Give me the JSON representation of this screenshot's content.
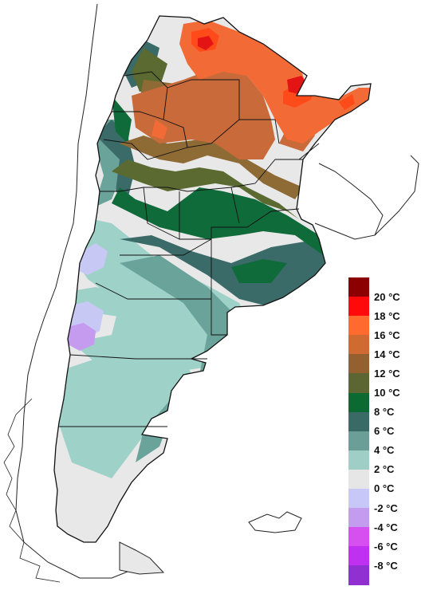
{
  "map": {
    "regions": [
      {
        "name": "band-20",
        "color": "#e51414"
      },
      {
        "name": "band-18",
        "color": "#ff4a1a"
      },
      {
        "name": "band-16",
        "color": "#f26a35"
      },
      {
        "name": "band-14",
        "color": "#c86a3a"
      },
      {
        "name": "band-12",
        "color": "#8e6a35"
      },
      {
        "name": "band-10",
        "color": "#5a6a30"
      },
      {
        "name": "band-8",
        "color": "#0f6b3a"
      },
      {
        "name": "band-6",
        "color": "#3b6b68"
      },
      {
        "name": "band-4",
        "color": "#6aa39a"
      },
      {
        "name": "band-2",
        "color": "#9ed1c8"
      },
      {
        "name": "band-0",
        "color": "#e8e8e8"
      },
      {
        "name": "band-m2",
        "color": "#c8c8f5"
      },
      {
        "name": "band-m4",
        "color": "#c49bef"
      }
    ]
  },
  "legend": {
    "items": [
      {
        "label": "20 °C",
        "color": "#8b0000"
      },
      {
        "label": "18 °C",
        "color": "#ff0a0a"
      },
      {
        "label": "16 °C",
        "color": "#ff6a2e"
      },
      {
        "label": "14 °C",
        "color": "#cf6a30"
      },
      {
        "label": "12 °C",
        "color": "#946030"
      },
      {
        "label": "10 °C",
        "color": "#5c6632"
      },
      {
        "label": "8 °C",
        "color": "#0a6a32"
      },
      {
        "label": "6 °C",
        "color": "#3a6a66"
      },
      {
        "label": "4 °C",
        "color": "#6a9e96"
      },
      {
        "label": "2 °C",
        "color": "#9ecec6"
      },
      {
        "label": "0 °C",
        "color": "#e6e6e6"
      },
      {
        "label": "-2 °C",
        "color": "#c8c8f8"
      },
      {
        "label": "-4 °C",
        "color": "#c39cf0"
      },
      {
        "label": "-6 °C",
        "color": "#d650f0"
      },
      {
        "label": "-8 °C",
        "color": "#c030f0"
      },
      {
        "label": "",
        "color": "#9030d0"
      }
    ]
  }
}
